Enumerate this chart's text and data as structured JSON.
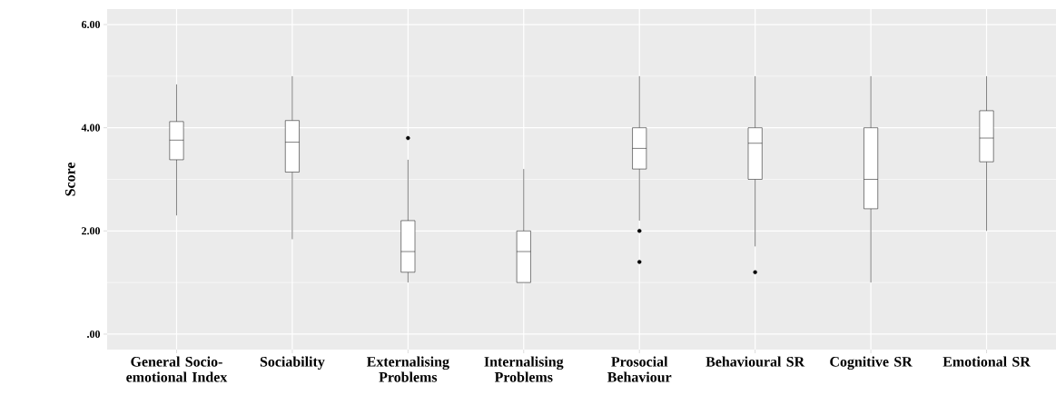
{
  "chart_data": {
    "type": "box",
    "ylabel": "Score",
    "categories": [
      "General Socio-emotional Index",
      "Sociability",
      "Externalising Problems",
      "Internalising Problems",
      "Prosocial Behaviour",
      "Behavioural SR",
      "Cognitive SR",
      "Emotional SR"
    ],
    "boxes": [
      {
        "low": 2.3,
        "q1": 3.38,
        "median": 3.76,
        "q3": 4.12,
        "high": 4.84
      },
      {
        "low": 1.84,
        "q1": 3.14,
        "median": 3.72,
        "q3": 4.14,
        "high": 5.0
      },
      {
        "low": 1.0,
        "q1": 1.2,
        "median": 1.6,
        "q3": 2.2,
        "high": 3.38,
        "outliers": [
          3.8
        ]
      },
      {
        "low": 1.0,
        "q1": 1.0,
        "median": 1.6,
        "q3": 2.0,
        "high": 3.2
      },
      {
        "low": 2.2,
        "q1": 3.2,
        "median": 3.6,
        "q3": 4.0,
        "high": 5.0,
        "outliers": [
          2.0,
          1.4
        ]
      },
      {
        "low": 1.7,
        "q1": 3.0,
        "median": 3.7,
        "q3": 4.0,
        "high": 5.0,
        "outliers": [
          1.2
        ]
      },
      {
        "low": 1.0,
        "q1": 2.43,
        "median": 3.0,
        "q3": 4.0,
        "high": 5.0
      },
      {
        "low": 2.0,
        "q1": 3.34,
        "median": 3.8,
        "q3": 4.33,
        "high": 5.0
      }
    ],
    "color": "#000000",
    "ylim": [
      -0.3,
      6.3
    ],
    "yticks": [
      {
        "value": 0,
        "label": ".00"
      },
      {
        "value": 2,
        "label": "2.00"
      },
      {
        "value": 4,
        "label": "4.00"
      },
      {
        "value": 6,
        "label": "6.00"
      }
    ],
    "grid": true
  }
}
